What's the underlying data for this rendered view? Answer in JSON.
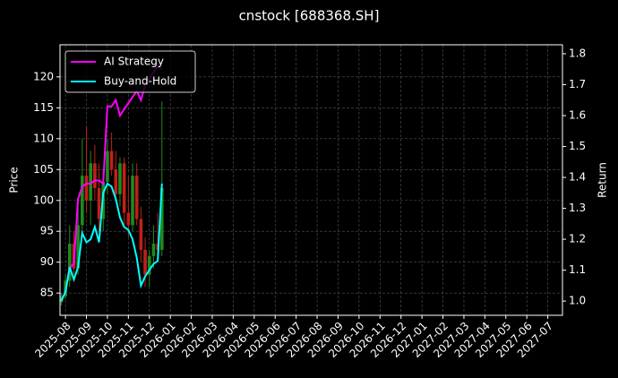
{
  "chart_data": {
    "type": "candlestick",
    "title": "cnstock [688368.SH]",
    "ylabel": "Price",
    "y2label": "Return",
    "x": [
      -0.2,
      0.0,
      0.2,
      0.4,
      0.6,
      0.8,
      1.0,
      1.2,
      1.4,
      1.6,
      1.8,
      2.0,
      2.2,
      2.4,
      2.6,
      2.8,
      3.0,
      3.2,
      3.4,
      3.6,
      3.8,
      4.0,
      4.2,
      4.4,
      4.6
    ],
    "open": [
      83.5,
      84.5,
      87,
      93,
      89,
      96,
      104,
      100,
      106,
      102,
      97,
      103,
      108,
      105,
      101,
      106,
      98,
      96,
      104,
      97,
      92,
      88,
      91,
      93,
      92
    ],
    "high": [
      85,
      88,
      96,
      95,
      100,
      110,
      112,
      108,
      109,
      106,
      105,
      110,
      111,
      108,
      107,
      107,
      104,
      106,
      106,
      99,
      94,
      92,
      96,
      98,
      116
    ],
    "low": [
      83,
      84,
      86,
      88,
      88,
      94,
      98,
      96,
      100,
      95,
      95,
      101,
      104,
      100,
      99,
      96,
      94,
      95,
      96,
      90,
      86,
      86,
      89,
      90,
      91
    ],
    "close": [
      84.5,
      87,
      93,
      89,
      96,
      104,
      100,
      106,
      102,
      97,
      103,
      108,
      105,
      101,
      106,
      98,
      96,
      104,
      97,
      92,
      88,
      91,
      93,
      92,
      102
    ],
    "up_color": "#1f8a1f",
    "down_color": "#c0201a",
    "series": [
      {
        "name": "AI Strategy",
        "color": "#ff00ff",
        "axis": "y2",
        "values": [
          1.0,
          1.03,
          1.11,
          1.12,
          1.33,
          1.37,
          1.38,
          1.38,
          1.39,
          1.39,
          1.38,
          1.63,
          1.63,
          1.65,
          1.6,
          1.62,
          1.64,
          1.66,
          1.68,
          1.65,
          1.7,
          1.72,
          1.74,
          1.76,
          1.75
        ]
      },
      {
        "name": "Buy-and-Hold",
        "color": "#00ffff",
        "axis": "y2",
        "values": [
          1.0,
          1.03,
          1.11,
          1.07,
          1.11,
          1.22,
          1.19,
          1.2,
          1.24,
          1.19,
          1.35,
          1.38,
          1.37,
          1.33,
          1.27,
          1.24,
          1.23,
          1.2,
          1.14,
          1.05,
          1.08,
          1.1,
          1.12,
          1.13,
          1.38
        ]
      }
    ],
    "xlim": [
      -0.26,
      23.7
    ],
    "xticks": [
      {
        "value": 0,
        "label": "2025-08"
      },
      {
        "value": 1,
        "label": "2025-09"
      },
      {
        "value": 2,
        "label": "2025-10"
      },
      {
        "value": 3,
        "label": "2025-11"
      },
      {
        "value": 4,
        "label": "2025-12"
      },
      {
        "value": 5,
        "label": "2026-01"
      },
      {
        "value": 6,
        "label": "2026-02"
      },
      {
        "value": 7,
        "label": "2026-03"
      },
      {
        "value": 8,
        "label": "2026-04"
      },
      {
        "value": 9,
        "label": "2026-05"
      },
      {
        "value": 10,
        "label": "2026-06"
      },
      {
        "value": 11,
        "label": "2026-07"
      },
      {
        "value": 12,
        "label": "2026-08"
      },
      {
        "value": 13,
        "label": "2026-09"
      },
      {
        "value": 14,
        "label": "2026-10"
      },
      {
        "value": 15,
        "label": "2026-11"
      },
      {
        "value": 16,
        "label": "2026-12"
      },
      {
        "value": 17,
        "label": "2027-01"
      },
      {
        "value": 18,
        "label": "2027-02"
      },
      {
        "value": 19,
        "label": "2027-03"
      },
      {
        "value": 20,
        "label": "2027-04"
      },
      {
        "value": 21,
        "label": "2027-05"
      },
      {
        "value": 22,
        "label": "2027-06"
      },
      {
        "value": 23,
        "label": "2027-07"
      }
    ],
    "ylim": [
      81.4,
      125.2
    ],
    "yticks": [
      85,
      90,
      95,
      100,
      105,
      110,
      115,
      120
    ],
    "y2lim": [
      0.954,
      1.829
    ],
    "y2ticks": [
      {
        "value": 1,
        "label": "1.0"
      },
      1.1,
      1.2,
      1.3,
      1.4,
      1.5,
      1.6,
      1.7,
      1.8
    ],
    "grid": true,
    "legend": "upper left"
  }
}
